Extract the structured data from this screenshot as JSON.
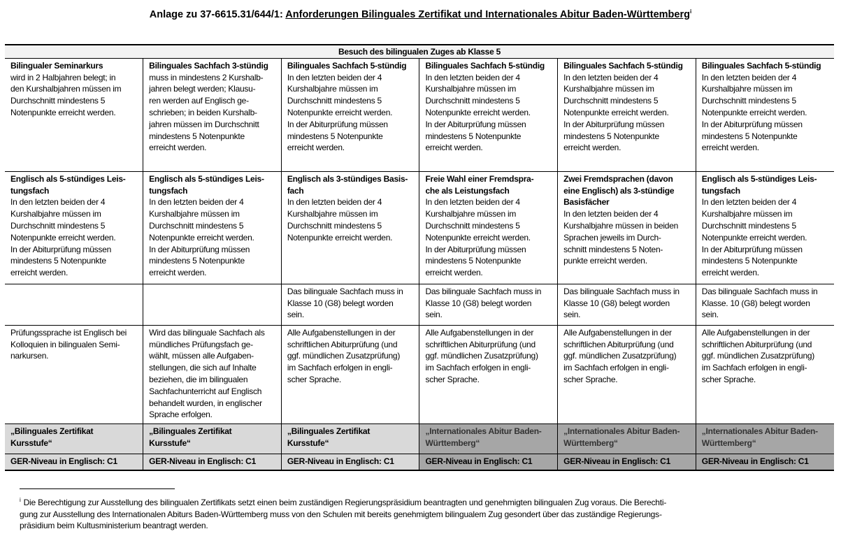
{
  "title": {
    "prefix": "Anlage zu 37-6615.31/644/1: ",
    "main": "Anforderungen Bilinguales Zertifikat und Internationales Abitur Baden-Württemberg",
    "note_mark": "i"
  },
  "table": {
    "header": "Besuch des bilingualen Zuges ab Klasse 5",
    "rows": [
      [
        {
          "title": "Bilingualer Seminarkurs",
          "body": " wird in 2 Halbjahren belegt; in\nden Kurshalbjahren müssen im\nDurchschnitt mindestens 5\nNotenpunkte erreicht werden."
        },
        {
          "title": "Bilinguales Sachfach 3-stündig",
          "body": "muss in mindestens 2 Kurshalb-\njahren belegt werden; Klausu-\nren werden auf Englisch ge-\nschrieben; in beiden Kurshalb-\njahren müssen im Durchschnitt\nmindestens 5 Notenpunkte\nerreicht werden."
        },
        {
          "title": "Bilinguales Sachfach 5-stündig",
          "body": "In den letzten beiden der 4\nKurshalbjahre müssen im\nDurchschnitt mindestens 5\nNotenpunkte erreicht werden.\nIn der Abiturprüfung müssen\nmindestens 5 Notenpunkte\nerreicht werden."
        },
        {
          "title": "Bilinguales Sachfach 5-stündig",
          "body": "In den letzten beiden der 4\nKurshalbjahre müssen im\nDurchschnitt mindestens 5\nNotenpunkte erreicht werden.\nIn der Abiturprüfung müssen\nmindestens 5 Notenpunkte\nerreicht werden."
        },
        {
          "title": "Bilinguales Sachfach 5-stündig",
          "body": "In den letzten beiden der 4\nKurshalbjahre müssen im\nDurchschnitt mindestens 5\nNotenpunkte erreicht werden.\nIn der Abiturprüfung müssen\nmindestens 5 Notenpunkte\nerreicht werden."
        },
        {
          "title": "Bilinguales Sachfach 5-stündig",
          "body": "In den letzten beiden der 4\nKurshalbjahre müssen im\nDurchschnitt mindestens 5\nNotenpunkte erreicht werden.\nIn der Abiturprüfung müssen\nmindestens 5 Notenpunkte\nerreicht werden."
        }
      ],
      [
        {
          "title": "Englisch als 5-stündiges Leis-\ntungsfach",
          "body": "In den letzten beiden der 4\nKurshalbjahre müssen im\nDurchschnitt mindestens 5\nNotenpunkte erreicht werden.\nIn der Abiturprüfung müssen\nmindestens 5 Notenpunkte\nerreicht werden."
        },
        {
          "title": "Englisch als 5-stündiges Leis-\ntungsfach",
          "body": "In den letzten beiden der 4\nKurshalbjahre müssen im\nDurchschnitt mindestens 5\nNotenpunkte erreicht werden.\nIn der Abiturprüfung müssen\nmindestens 5 Notenpunkte\nerreicht werden."
        },
        {
          "title": "Englisch als 3-stündiges Basis-\nfach",
          "body": "In den letzten beiden der 4\nKurshalbjahre müssen im\nDurchschnitt mindestens 5\nNotenpunkte erreicht werden."
        },
        {
          "title": "Freie  Wahl einer Fremdspra-\nche als Leistungsfach",
          "body": "In den letzten beiden der 4\nKurshalbjahre müssen im\nDurchschnitt mindestens 5\nNotenpunkte erreicht werden.\nIn der Abiturprüfung müssen\nmindestens 5 Notenpunkte\nerreicht werden."
        },
        {
          "title": "Zwei Fremdsprachen (davon\neine Englisch) als 3-stündige\nBasisfächer",
          "body": "In den letzten beiden der 4\nKurshalbjahre müssen in beiden\nSprachen jeweils im Durch-\nschnitt mindestens 5 Noten-\npunkte erreicht werden."
        },
        {
          "title": "Englisch als 5-stündiges Leis-\ntungsfach",
          "body": "In den letzten beiden der 4\nKurshalbjahre müssen im\nDurchschnitt mindestens 5\nNotenpunkte erreicht werden.\nIn der Abiturprüfung müssen\nmindestens 5 Notenpunkte\nerreicht werden."
        }
      ],
      [
        {
          "title": "",
          "body": ""
        },
        {
          "title": "",
          "body": ""
        },
        {
          "title": "",
          "body": "Das bilinguale Sachfach muss in\nKlasse 10 (G8) belegt worden\nsein."
        },
        {
          "title": "",
          "body": "Das bilinguale Sachfach muss in\nKlasse 10 (G8) belegt worden\nsein."
        },
        {
          "title": "",
          "body": "Das bilinguale Sachfach muss in\nKlasse 10 (G8) belegt worden\nsein."
        },
        {
          "title": "",
          "body": "Das bilinguale Sachfach muss in\nKlasse. 10 (G8) belegt worden\nsein."
        }
      ],
      [
        {
          "title": "",
          "body": "Prüfungssprache ist Englisch bei\nKolloquien in bilingualen Semi-\nnarkursen."
        },
        {
          "title": "",
          "body": "Wird das bilinguale Sachfach als\nmündliches Prüfungsfach ge-\nwählt, müssen alle Aufgaben-\nstellungen, die sich auf Inhalte\nbeziehen, die im bilingualen\nSachfachunterricht auf Englisch\nbehandelt wurden, in englischer\nSprache erfolgen."
        },
        {
          "title": "",
          "body": "Alle Aufgabenstellungen in der\nschriftlichen Abiturprüfung (und\nggf. mündlichen Zusatzprüfung)\nim Sachfach erfolgen in engli-\nscher Sprache."
        },
        {
          "title": "",
          "body": "Alle Aufgabenstellungen in der\nschriftlichen Abiturprüfung (und\nggf. mündlichen Zusatzprüfung)\nim Sachfach erfolgen in engli-\nscher Sprache."
        },
        {
          "title": "",
          "body": "Alle Aufgabenstellungen in der\nschriftlichen Abiturprüfung (und\nggf. mündlichen Zusatzprüfung)\nim Sachfach erfolgen in engli-\nscher Sprache."
        },
        {
          "title": "",
          "body": "Alle Aufgabenstellungen in der\nschriftlichen Abiturprüfung (und\nggf. mündlichen Zusatzprüfung)\nim Sachfach erfolgen in engli-\nscher Sprache."
        }
      ]
    ],
    "certificates": [
      "„Bilinguales Zertifikat\nKursstufe“",
      "„Bilinguales Zertifikat\nKursstufe“",
      "„Bilinguales Zertifikat\nKursstufe“",
      "„Internationales Abitur Baden-\nWürttemberg“",
      "„Internationales Abitur Baden-\nWürttemberg“",
      "„Internationales Abitur Baden-\nWürttemberg“"
    ],
    "levels": [
      "GER-Niveau in Englisch: C1",
      "GER-Niveau in Englisch: C1",
      "GER-Niveau in Englisch: C1",
      "GER-Niveau in Englisch: C1",
      "GER-Niveau in Englisch: C1",
      "GER-Niveau in Englisch: C1"
    ],
    "colors": {
      "header_bg": "#f2f2f2",
      "zertifikat_bg": "#d9d9d9",
      "abitur_bg": "#a6a6a6"
    }
  },
  "footnote": {
    "mark": "i",
    "text": "Die Berechtigung zur Ausstellung des bilingualen Zertifikats setzt einen beim zuständigen Regierungspräsidium beantragten und genehmigten bilingualen Zug voraus. Die Berechti-\ngung zur Ausstellung des Internationalen Abiturs Baden-Württemberg muss von den Schulen mit bereits genehmigtem bilingualem Zug gesondert über das zuständige Regierungs-\npräsidium beim Kultusministerium beantragt werden."
  }
}
